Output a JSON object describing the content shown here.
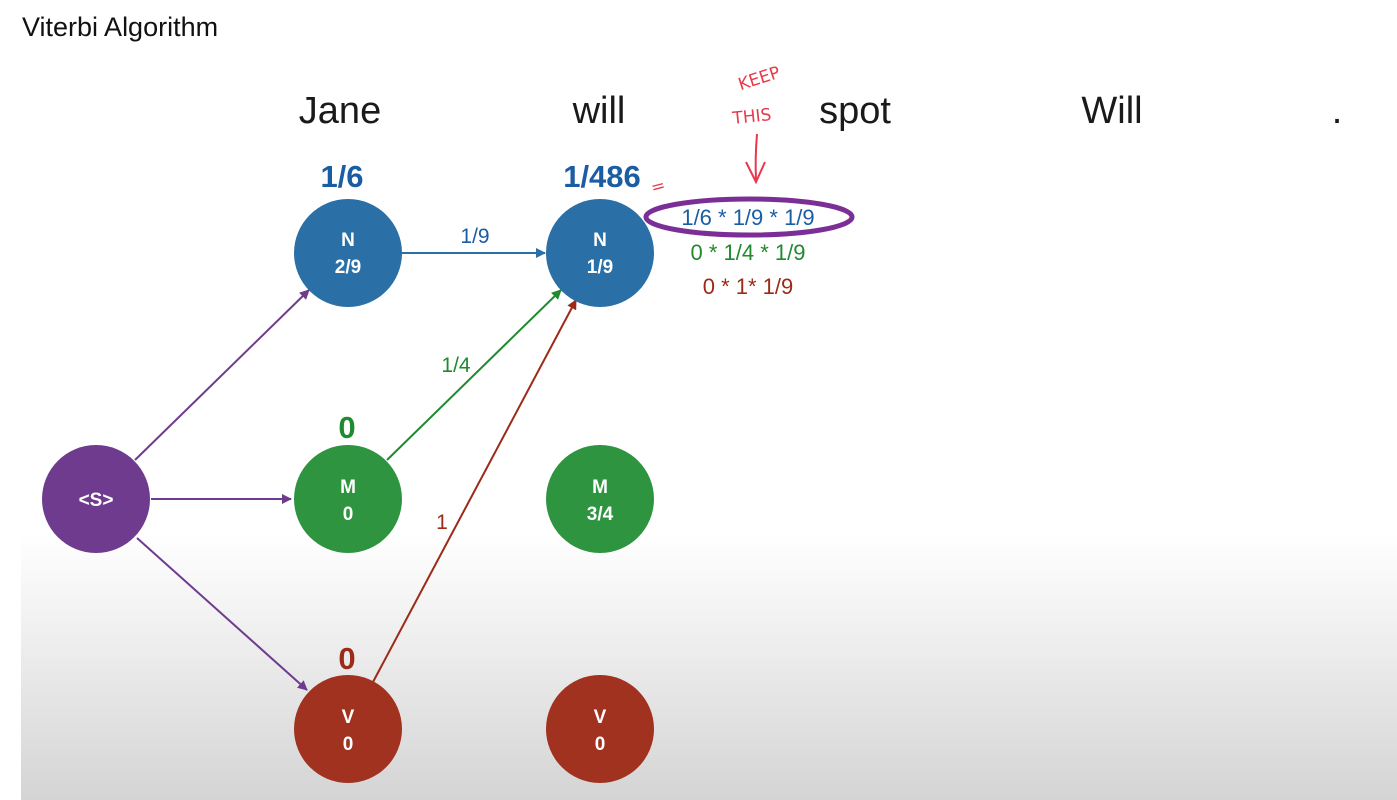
{
  "header": {
    "title": "Viterbi Algorithm"
  },
  "sentence": [
    "Jane",
    "will",
    "spot",
    "Will",
    "."
  ],
  "colors": {
    "noun": "#2a6fa6",
    "modal": "#2e9440",
    "verb": "#a0321f",
    "start": "#6e3b8e",
    "noun_text": "#1a5da3",
    "modal_text": "#1f8a2e",
    "verb_text": "#9c2a18",
    "annotation": "#e8394a",
    "highlight": "#7b2f96"
  },
  "nodes": {
    "start": {
      "label": "<S>"
    },
    "col1": [
      {
        "tag": "N",
        "prob": "2/9"
      },
      {
        "tag": "M",
        "prob": "0"
      },
      {
        "tag": "V",
        "prob": "0"
      }
    ],
    "col2": [
      {
        "tag": "N",
        "prob": "1/9"
      },
      {
        "tag": "M",
        "prob": "3/4"
      },
      {
        "tag": "V",
        "prob": "0"
      }
    ]
  },
  "scores": {
    "col1_n": "1/6",
    "col1_m": "0",
    "col1_v": "0",
    "col2_n": "1/486"
  },
  "edge_labels": {
    "n_to_n": "1/9",
    "m_to_n": "1/4",
    "v_to_n": "1"
  },
  "calculations": [
    "1/6 * 1/9 * 1/9",
    "0 * 1/4 * 1/9",
    "0 * 1* 1/9"
  ],
  "annotation": {
    "line1": "KEEP",
    "line2": "THIS",
    "equals_mark": "="
  }
}
